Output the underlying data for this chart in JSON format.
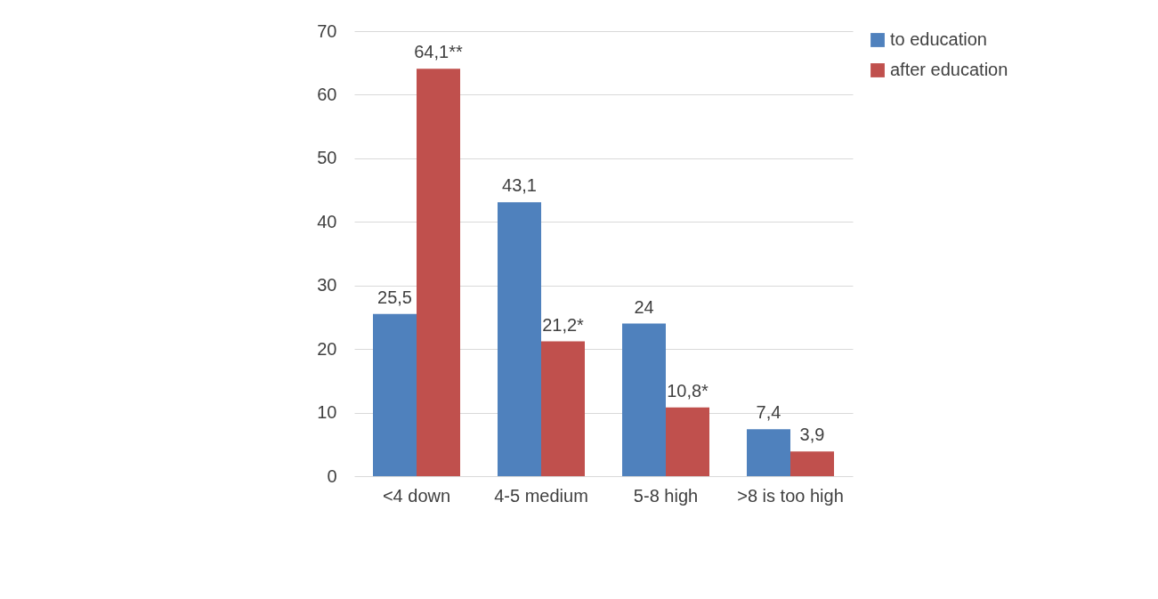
{
  "chart_data": {
    "type": "bar",
    "categories": [
      "<4 down",
      "4-5 medium",
      "5-8 high",
      ">8 is too high"
    ],
    "series": [
      {
        "name": "to education",
        "color": "#4f81bd",
        "values": [
          25.5,
          43.1,
          24,
          7.4
        ],
        "value_labels": [
          "25,5",
          "43,1",
          "24",
          "7,4"
        ]
      },
      {
        "name": "after education",
        "color": "#c0504d",
        "values": [
          64.1,
          21.2,
          10.8,
          3.9
        ],
        "value_labels": [
          "64,1**",
          "21,2*",
          "10,8*",
          "3,9"
        ]
      }
    ],
    "ylim": [
      0,
      70
    ],
    "yticks": [
      0,
      10,
      20,
      30,
      40,
      50,
      60,
      70
    ],
    "grid": "y",
    "legend": "right"
  }
}
